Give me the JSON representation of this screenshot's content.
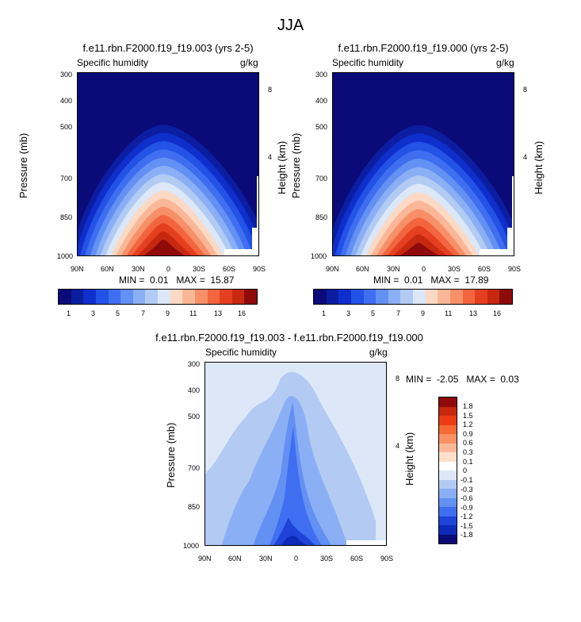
{
  "figure": {
    "title": "JJA"
  },
  "colors": {
    "abs_palette": [
      "#0a0a78",
      "#0b1ea2",
      "#0f2fcc",
      "#2352e6",
      "#3f6ff0",
      "#6390f3",
      "#8aaff4",
      "#b2cbf3",
      "#dce7f7",
      "#fbd9c5",
      "#fab797",
      "#f78f68",
      "#f2653f",
      "#e44020",
      "#c62810",
      "#8f0a0a"
    ],
    "diff_palette": [
      "#8f0a0a",
      "#c62810",
      "#ec3c16",
      "#f56a35",
      "#f89265",
      "#fbb899",
      "#fde0cc",
      "#ffffff",
      "#dce8f8",
      "#b3cbf3",
      "#8aaff4",
      "#6390f3",
      "#3f6ff0",
      "#1f43d8",
      "#0d2bb8",
      "#0a0a78"
    ]
  },
  "axes": {
    "x_ticks": [
      "90N",
      "60N",
      "30N",
      "0",
      "30S",
      "60S",
      "90S"
    ],
    "p_ticks": [
      "300",
      "400",
      "500",
      "700",
      "850",
      "1000"
    ],
    "h_ticks": [
      "8",
      "4"
    ],
    "ylabel": "Pressure (mb)",
    "ylabel_right": "Height (km)"
  },
  "chart_data": [
    {
      "type": "heatmap",
      "title": "f.e11.rbn.F2000.f19_f19.003 (yrs 2-5)",
      "variable": "Specific humidity",
      "units": "g/kg",
      "x": [
        "90N",
        "60N",
        "30N",
        "0",
        "30S",
        "60S",
        "90S"
      ],
      "xlim": [
        90,
        -90
      ],
      "ylim": [
        1000,
        300
      ],
      "ylabel": "Pressure (mb)",
      "ylabel_right": "Height (km)",
      "min_label": "MIN =",
      "min_value": "0.01",
      "max_label": "MAX =",
      "max_value": "15.87",
      "peak": {
        "lat": 10,
        "p": 950,
        "value": 15.87
      },
      "colorbar": {
        "orientation": "horizontal",
        "labels": [
          "1",
          "3",
          "5",
          "7",
          "9",
          "11",
          "13",
          "16"
        ]
      }
    },
    {
      "type": "heatmap",
      "title": "f.e11.rbn.F2000.f19_f19.000 (yrs 2-5)",
      "variable": "Specific humidity",
      "units": "g/kg",
      "x": [
        "90N",
        "60N",
        "30N",
        "0",
        "30S",
        "60S",
        "90S"
      ],
      "xlim": [
        90,
        -90
      ],
      "ylim": [
        1000,
        300
      ],
      "ylabel": "Pressure (mb)",
      "ylabel_right": "Height (km)",
      "min_label": "MIN =",
      "min_value": "0.01",
      "max_label": "MAX =",
      "max_value": "17.89",
      "peak": {
        "lat": 10,
        "p": 950,
        "value": 17.89
      },
      "colorbar": {
        "orientation": "horizontal",
        "labels": [
          "1",
          "3",
          "5",
          "7",
          "9",
          "11",
          "13",
          "16"
        ]
      }
    },
    {
      "type": "heatmap",
      "title": "f.e11.rbn.F2000.f19_f19.003 - f.e11.rbn.F2000.f19_f19.000",
      "variable": "Specific humidity",
      "units": "g/kg",
      "x": [
        "90N",
        "60N",
        "30N",
        "0",
        "30S",
        "60S",
        "90S"
      ],
      "xlim": [
        90,
        -90
      ],
      "ylim": [
        1000,
        300
      ],
      "ylabel": "Pressure (mb)",
      "ylabel_right": "Height (km)",
      "min_label": "MIN =",
      "min_value": "-2.05",
      "max_label": "MAX =",
      "max_value": "0.03",
      "colorbar": {
        "orientation": "vertical",
        "labels": [
          "1.8",
          "1.5",
          "1.2",
          "0.9",
          "0.6",
          "0.3",
          "0.1",
          "0",
          "-0.1",
          "-0.3",
          "-0.6",
          "-0.9",
          "-1.2",
          "-1.5",
          "-1.8"
        ]
      }
    }
  ]
}
